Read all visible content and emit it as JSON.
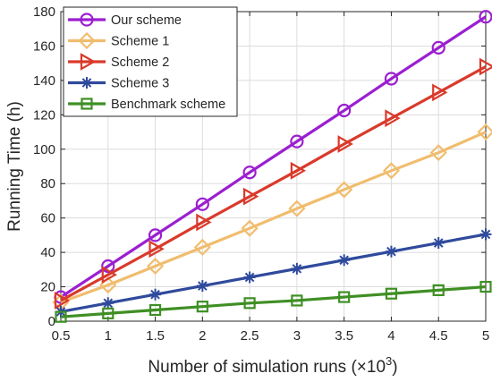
{
  "chart_data": {
    "type": "line",
    "xlabel_main": "Number of simulation runs (",
    "xlabel_times": "×10",
    "xlabel_exp": "3",
    "xlabel_close": ")",
    "ylabel": "Running Time (h)",
    "xlim": [
      0.5,
      5
    ],
    "ylim": [
      0,
      180
    ],
    "grid": true,
    "legend_position": "top-left",
    "x": [
      0.5,
      1,
      1.5,
      2,
      2.5,
      3,
      3.5,
      4,
      4.5,
      5
    ],
    "x_tick_labels": [
      "0.5",
      "1",
      "1.5",
      "2",
      "2.5",
      "3",
      "3.5",
      "4",
      "4.5",
      "5"
    ],
    "y_ticks": [
      0,
      20,
      40,
      60,
      80,
      100,
      120,
      140,
      160,
      180
    ],
    "y_tick_labels": [
      "0",
      "20",
      "40",
      "60",
      "80",
      "100",
      "120",
      "140",
      "160",
      "180"
    ],
    "series": [
      {
        "name": "Our scheme",
        "color": "#9b1fd1",
        "marker": "circle",
        "values": [
          14,
          32,
          50,
          68,
          86.5,
          104.5,
          122.5,
          141,
          159,
          177
        ]
      },
      {
        "name": "Scheme 1",
        "color": "#f0bd6e",
        "marker": "diamond",
        "values": [
          11,
          21,
          32,
          43,
          54,
          65.5,
          76.5,
          87.5,
          98,
          110
        ]
      },
      {
        "name": "Scheme 2",
        "color": "#d93a2b",
        "marker": "triangle-right",
        "values": [
          12,
          27,
          42,
          57.5,
          72.5,
          87.5,
          103,
          118,
          133,
          148
        ]
      },
      {
        "name": "Scheme 3",
        "color": "#2f4a9c",
        "marker": "asterisk",
        "values": [
          5.5,
          10.5,
          15.5,
          20.5,
          25.5,
          30.5,
          35.5,
          40.5,
          45.5,
          50.5
        ]
      },
      {
        "name": "Benchmark scheme",
        "color": "#3f8f24",
        "marker": "square",
        "values": [
          2.5,
          4.5,
          6.5,
          8.5,
          10.5,
          12,
          14,
          16,
          18,
          20
        ]
      }
    ]
  }
}
